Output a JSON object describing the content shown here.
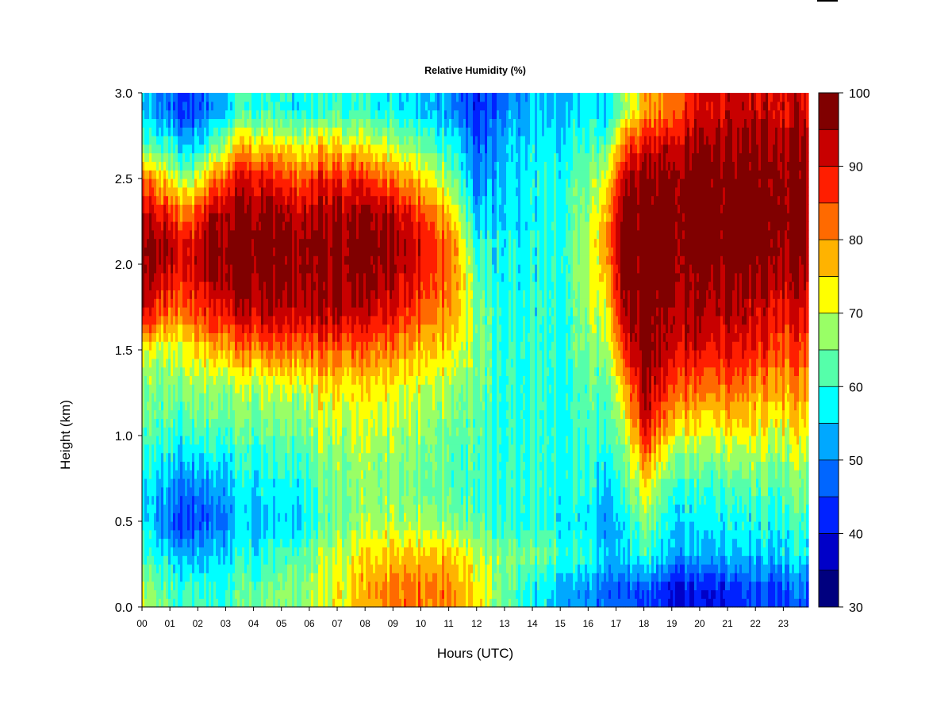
{
  "chart_data": {
    "type": "heatmap",
    "title": "Relative Humidity (%)",
    "xlabel": "Hours (UTC)",
    "ylabel": "Height (km)",
    "xlim": [
      0,
      23.9
    ],
    "ylim": [
      0,
      3
    ],
    "x_ticks": [
      {
        "value": 0,
        "label": "00"
      },
      {
        "value": 1,
        "label": "01"
      },
      {
        "value": 2,
        "label": "02"
      },
      {
        "value": 3,
        "label": "03"
      },
      {
        "value": 4,
        "label": "04"
      },
      {
        "value": 5,
        "label": "05"
      },
      {
        "value": 6,
        "label": "06"
      },
      {
        "value": 7,
        "label": "07"
      },
      {
        "value": 8,
        "label": "08"
      },
      {
        "value": 9,
        "label": "09"
      },
      {
        "value": 10,
        "label": "10"
      },
      {
        "value": 11,
        "label": "11"
      },
      {
        "value": 12,
        "label": "12"
      },
      {
        "value": 13,
        "label": "13"
      },
      {
        "value": 14,
        "label": "14"
      },
      {
        "value": 15,
        "label": "15"
      },
      {
        "value": 16,
        "label": "16"
      },
      {
        "value": 17,
        "label": "17"
      },
      {
        "value": 18,
        "label": "18"
      },
      {
        "value": 19,
        "label": "19"
      },
      {
        "value": 20,
        "label": "20"
      },
      {
        "value": 21,
        "label": "21"
      },
      {
        "value": 22,
        "label": "22"
      },
      {
        "value": 23,
        "label": "23"
      }
    ],
    "y_ticks": [
      {
        "value": 0,
        "label": "0.0"
      },
      {
        "value": 0.5,
        "label": "0.5"
      },
      {
        "value": 1,
        "label": "1.0"
      },
      {
        "value": 1.5,
        "label": "1.5"
      },
      {
        "value": 2,
        "label": "2.0"
      },
      {
        "value": 2.5,
        "label": "2.5"
      },
      {
        "value": 3,
        "label": "3.0"
      }
    ],
    "colorbar": {
      "levels": [
        30,
        35,
        40,
        45,
        50,
        55,
        60,
        65,
        70,
        75,
        80,
        85,
        90,
        95,
        100
      ],
      "colors": [
        "#00007F",
        "#0000C8",
        "#0022FF",
        "#0066FF",
        "#00A8FF",
        "#00FFFF",
        "#55FFAA",
        "#99FF66",
        "#FFFF00",
        "#FFB300",
        "#FF6A00",
        "#FF1E00",
        "#C80000",
        "#800000"
      ],
      "tick_labels": [
        {
          "value": 30,
          "label": "30"
        },
        {
          "value": 40,
          "label": "40"
        },
        {
          "value": 50,
          "label": "50"
        },
        {
          "value": 60,
          "label": "60"
        },
        {
          "value": 70,
          "label": "70"
        },
        {
          "value": 80,
          "label": "80"
        },
        {
          "value": 90,
          "label": "90"
        },
        {
          "value": 100,
          "label": "100"
        }
      ]
    },
    "heights_km": [
      0.1,
      0.3,
      0.5,
      0.7,
      0.9,
      1.1,
      1.3,
      1.5,
      1.7,
      1.9,
      2.1,
      2.3,
      2.5,
      2.7,
      2.9
    ],
    "profiles": [
      {
        "hour": 0,
        "rh": [
          70,
          62,
          58,
          58,
          62,
          65,
          66,
          72,
          92,
          98,
          98,
          93,
          85,
          62,
          55
        ]
      },
      {
        "hour": 1,
        "rh": [
          62,
          56,
          48,
          52,
          58,
          63,
          66,
          70,
          82,
          90,
          95,
          88,
          72,
          60,
          48
        ]
      },
      {
        "hour": 1.7,
        "rh": [
          60,
          52,
          42,
          48,
          56,
          62,
          66,
          72,
          82,
          88,
          90,
          80,
          66,
          52,
          42
        ]
      },
      {
        "hour": 2.5,
        "rh": [
          60,
          55,
          48,
          52,
          58,
          64,
          68,
          76,
          88,
          94,
          97,
          94,
          80,
          62,
          50
        ]
      },
      {
        "hour": 3.5,
        "rh": [
          62,
          58,
          54,
          56,
          60,
          64,
          68,
          80,
          92,
          97,
          99,
          96,
          90,
          76,
          60
        ]
      },
      {
        "hour": 4.5,
        "rh": [
          65,
          60,
          55,
          57,
          61,
          66,
          70,
          82,
          93,
          97,
          99,
          97,
          90,
          75,
          60
        ]
      },
      {
        "hour": 5.5,
        "rh": [
          66,
          62,
          56,
          58,
          62,
          66,
          71,
          83,
          93,
          96,
          97,
          94,
          85,
          72,
          58
        ]
      },
      {
        "hour": 6.5,
        "rh": [
          70,
          68,
          62,
          63,
          66,
          70,
          74,
          84,
          94,
          97,
          98,
          95,
          88,
          75,
          60
        ]
      },
      {
        "hour": 7.5,
        "rh": [
          74,
          72,
          66,
          66,
          68,
          70,
          74,
          83,
          93,
          96,
          98,
          96,
          88,
          74,
          60
        ]
      },
      {
        "hour": 8.5,
        "rh": [
          80,
          75,
          68,
          66,
          67,
          70,
          74,
          82,
          91,
          95,
          97,
          95,
          84,
          70,
          58
        ]
      },
      {
        "hour": 9.5,
        "rh": [
          82,
          76,
          68,
          65,
          66,
          68,
          72,
          78,
          86,
          91,
          94,
          90,
          78,
          66,
          56
        ]
      },
      {
        "hour": 10.5,
        "rh": [
          82,
          77,
          68,
          64,
          65,
          67,
          70,
          76,
          82,
          86,
          88,
          82,
          72,
          62,
          54
        ]
      },
      {
        "hour": 11.3,
        "rh": [
          80,
          76,
          66,
          62,
          63,
          65,
          68,
          73,
          78,
          80,
          80,
          72,
          64,
          58,
          50
        ]
      },
      {
        "hour": 12,
        "rh": [
          72,
          68,
          62,
          60,
          61,
          62,
          63,
          64,
          64,
          62,
          58,
          52,
          48,
          45,
          40
        ]
      },
      {
        "hour": 13,
        "rh": [
          64,
          66,
          60,
          60,
          60,
          60,
          60,
          60,
          60,
          58,
          58,
          56,
          55,
          54,
          50
        ]
      },
      {
        "hour": 14,
        "rh": [
          58,
          64,
          60,
          60,
          60,
          60,
          60,
          60,
          60,
          59,
          58,
          58,
          58,
          56,
          54
        ]
      },
      {
        "hour": 15,
        "rh": [
          54,
          62,
          58,
          60,
          60,
          60,
          60,
          60,
          60,
          60,
          60,
          60,
          60,
          58,
          55
        ]
      },
      {
        "hour": 16,
        "rh": [
          50,
          58,
          56,
          58,
          60,
          61,
          62,
          64,
          66,
          68,
          68,
          66,
          64,
          60,
          56
        ]
      },
      {
        "hour": 16.6,
        "rh": [
          48,
          56,
          52,
          56,
          60,
          62,
          64,
          68,
          72,
          76,
          80,
          78,
          72,
          64,
          56
        ]
      },
      {
        "hour": 17.3,
        "rh": [
          46,
          54,
          56,
          60,
          64,
          70,
          76,
          86,
          94,
          97,
          99,
          97,
          92,
          82,
          66
        ]
      },
      {
        "hour": 18,
        "rh": [
          44,
          60,
          66,
          72,
          82,
          92,
          95,
          97,
          99,
          99,
          99,
          99,
          96,
          90,
          76
        ]
      },
      {
        "hour": 19,
        "rh": [
          42,
          54,
          58,
          62,
          70,
          80,
          88,
          94,
          96,
          98,
          99,
          99,
          98,
          94,
          84
        ]
      },
      {
        "hour": 20,
        "rh": [
          40,
          52,
          56,
          60,
          66,
          74,
          82,
          90,
          94,
          96,
          99,
          99,
          98,
          96,
          90
        ]
      },
      {
        "hour": 21,
        "rh": [
          42,
          54,
          58,
          62,
          68,
          76,
          84,
          90,
          94,
          96,
          99,
          99,
          98,
          96,
          92
        ]
      },
      {
        "hour": 22,
        "rh": [
          44,
          54,
          58,
          62,
          68,
          74,
          80,
          88,
          92,
          95,
          99,
          99,
          98,
          96,
          92
        ]
      },
      {
        "hour": 23,
        "rh": [
          46,
          56,
          60,
          64,
          68,
          74,
          80,
          86,
          90,
          94,
          98,
          99,
          98,
          96,
          92
        ]
      },
      {
        "hour": 23.9,
        "rh": [
          48,
          58,
          62,
          66,
          70,
          76,
          80,
          86,
          90,
          94,
          98,
          99,
          98,
          96,
          92
        ]
      }
    ]
  }
}
